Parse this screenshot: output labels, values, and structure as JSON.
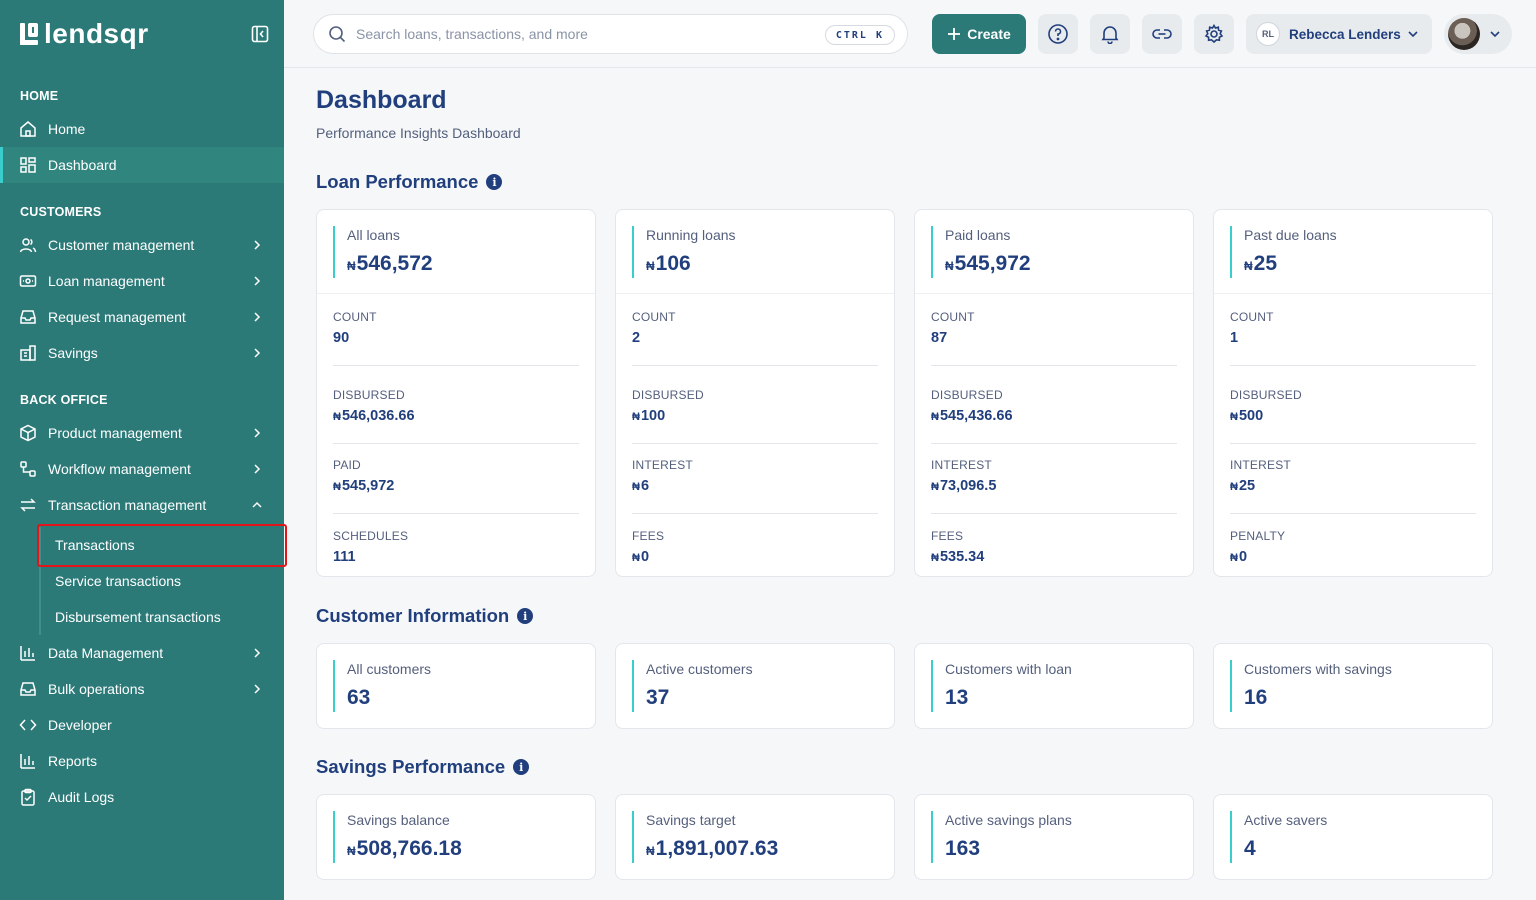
{
  "brand": {
    "name": "lendsqr"
  },
  "sidebar": {
    "sections": [
      {
        "label": "HOME"
      },
      {
        "label": "CUSTOMERS"
      },
      {
        "label": "BACK OFFICE"
      }
    ],
    "items": [
      {
        "label": "Home"
      },
      {
        "label": "Dashboard"
      },
      {
        "label": "Customer management"
      },
      {
        "label": "Loan management"
      },
      {
        "label": "Request management"
      },
      {
        "label": "Savings"
      },
      {
        "label": "Product management"
      },
      {
        "label": "Workflow management"
      },
      {
        "label": "Transaction management"
      },
      {
        "label": "Data Management"
      },
      {
        "label": "Bulk operations"
      },
      {
        "label": "Developer"
      },
      {
        "label": "Reports"
      },
      {
        "label": "Audit Logs"
      }
    ],
    "sub_items": [
      {
        "label": "Transactions"
      },
      {
        "label": "Service transactions"
      },
      {
        "label": "Disbursement transactions"
      }
    ]
  },
  "topbar": {
    "search_placeholder": "Search loans, transactions, and more",
    "shortcut": "CTRL K",
    "create_label": "Create",
    "user_initials": "RL",
    "user_name": "Rebecca Lenders"
  },
  "page": {
    "title": "Dashboard",
    "subtitle": "Performance Insights Dashboard"
  },
  "currency_symbol": "₦",
  "loan_performance": {
    "title": "Loan Performance",
    "cards": [
      {
        "label": "All loans",
        "value": "546,572",
        "stats": [
          {
            "label": "COUNT",
            "value": "90"
          },
          {
            "label": "DISBURSED",
            "value": "546,036.66"
          },
          {
            "label": "PAID",
            "value": "545,972"
          },
          {
            "label": "SCHEDULES",
            "value": "111"
          }
        ]
      },
      {
        "label": "Running loans",
        "value": "106",
        "stats": [
          {
            "label": "COUNT",
            "value": "2"
          },
          {
            "label": "DISBURSED",
            "value": "100"
          },
          {
            "label": "INTEREST",
            "value": "6"
          },
          {
            "label": "FEES",
            "value": "0"
          }
        ]
      },
      {
        "label": "Paid loans",
        "value": "545,972",
        "stats": [
          {
            "label": "COUNT",
            "value": "87"
          },
          {
            "label": "DISBURSED",
            "value": "545,436.66"
          },
          {
            "label": "INTEREST",
            "value": "73,096.5"
          },
          {
            "label": "FEES",
            "value": "535.34"
          }
        ]
      },
      {
        "label": "Past due loans",
        "value": "25",
        "stats": [
          {
            "label": "COUNT",
            "value": "1"
          },
          {
            "label": "DISBURSED",
            "value": "500"
          },
          {
            "label": "INTEREST",
            "value": "25"
          },
          {
            "label": "PENALTY",
            "value": "0"
          }
        ]
      }
    ]
  },
  "customer_information": {
    "title": "Customer Information",
    "cards": [
      {
        "label": "All customers",
        "value": "63"
      },
      {
        "label": "Active customers",
        "value": "37"
      },
      {
        "label": "Customers with loan",
        "value": "13"
      },
      {
        "label": "Customers with savings",
        "value": "16"
      }
    ]
  },
  "savings_performance": {
    "title": "Savings Performance",
    "cards": [
      {
        "label": "Savings balance",
        "value": "508,766.18"
      },
      {
        "label": "Savings target",
        "value": "1,891,007.63"
      },
      {
        "label": "Active savings plans",
        "value": "163"
      },
      {
        "label": "Active savers",
        "value": "4"
      }
    ]
  },
  "colors": {
    "sidebar": "#2b7a78",
    "accent": "#39cdcc",
    "text": "#213f7d",
    "highlight": "#e3151b"
  }
}
